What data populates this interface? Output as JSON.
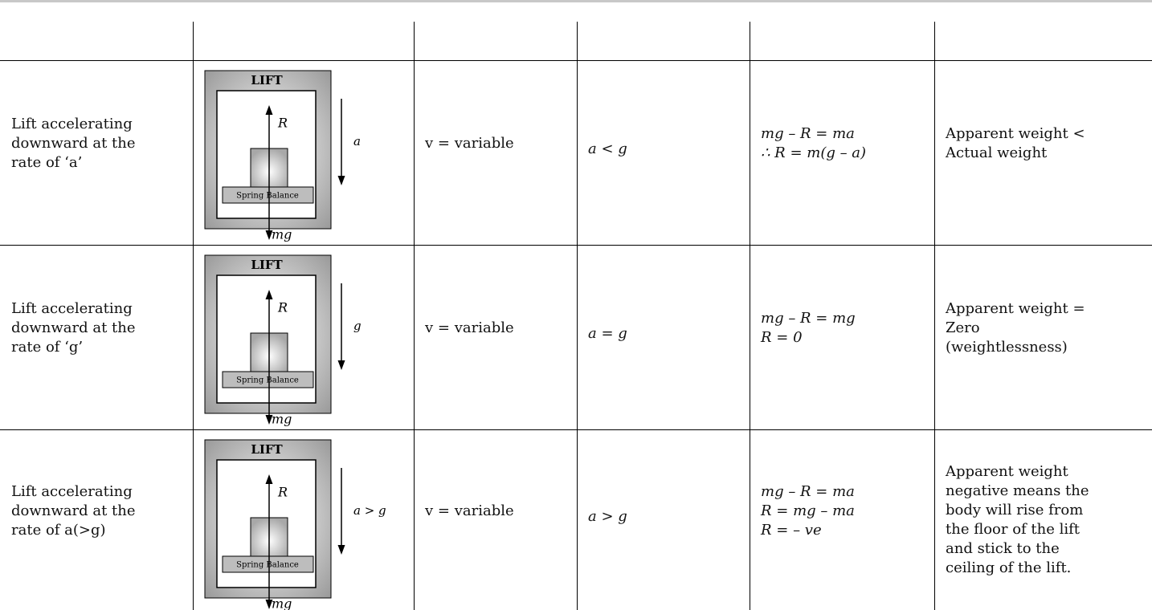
{
  "table": {
    "rows": [
      {
        "condition": [
          "Lift accelerating",
          "downward at the",
          "rate of ‘a’"
        ],
        "diagram": {
          "lift": "LIFT",
          "normal": "R",
          "accel": "a",
          "balance": "Spring Balance",
          "weight": "mg"
        },
        "velocity": "v = variable",
        "relation": "a < g",
        "equation": [
          "mg – R = ma",
          "∴ R = m(g – a)"
        ],
        "result": [
          "Apparent weight <",
          "Actual weight"
        ]
      },
      {
        "condition": [
          "Lift accelerating",
          "downward at the",
          "rate of ‘g’"
        ],
        "diagram": {
          "lift": "LIFT",
          "normal": "R",
          "accel": "g",
          "balance": "Spring Balance",
          "weight": "mg"
        },
        "velocity": "v = variable",
        "relation": "a = g",
        "equation": [
          "mg – R = mg",
          "R = 0"
        ],
        "result": [
          "Apparent weight =",
          "Zero",
          "(weightlessness)"
        ]
      },
      {
        "condition": [
          "Lift accelerating",
          "downward at the",
          "rate of a(>g)"
        ],
        "diagram": {
          "lift": "LIFT",
          "normal": "R",
          "accel": "a > g",
          "balance": "Spring Balance",
          "weight": "mg"
        },
        "velocity": "v = variable",
        "relation": "a > g",
        "equation": [
          "mg – R = ma",
          "R = mg – ma",
          "R = – ve"
        ],
        "result": [
          "Apparent weight",
          "negative means the",
          "body will rise from",
          "the floor of the lift",
          "and stick to the",
          "ceiling of the lift."
        ]
      }
    ]
  }
}
